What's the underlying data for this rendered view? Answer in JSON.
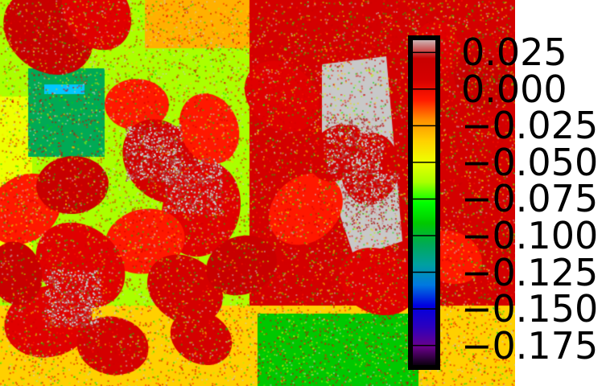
{
  "colorbar": {
    "tick_labels": [
      "0.025",
      "0.000",
      "−0.025",
      "−0.050",
      "−0.075",
      "−0.100",
      "−0.125",
      "−0.150",
      "−0.175"
    ],
    "tick_values": [
      0.025,
      0.0,
      -0.025,
      -0.05,
      -0.075,
      -0.1,
      -0.125,
      -0.15,
      -0.175
    ],
    "range": [
      -0.19,
      0.035
    ],
    "colormap": [
      "#000000",
      "#6a008a",
      "#2a00c0",
      "#0000e0",
      "#0078e0",
      "#00a0a0",
      "#00aa55",
      "#00c800",
      "#00ff00",
      "#aaff00",
      "#eeff00",
      "#ffd000",
      "#ff9000",
      "#ff1800",
      "#d40000",
      "#c80000",
      "#cccccc"
    ]
  },
  "image": {
    "kind": "false-color plant / leaf index map",
    "dominant_colors": [
      "#d40000",
      "#ff1800",
      "#00dd00",
      "#ffd000",
      "#c8c8c8"
    ]
  }
}
